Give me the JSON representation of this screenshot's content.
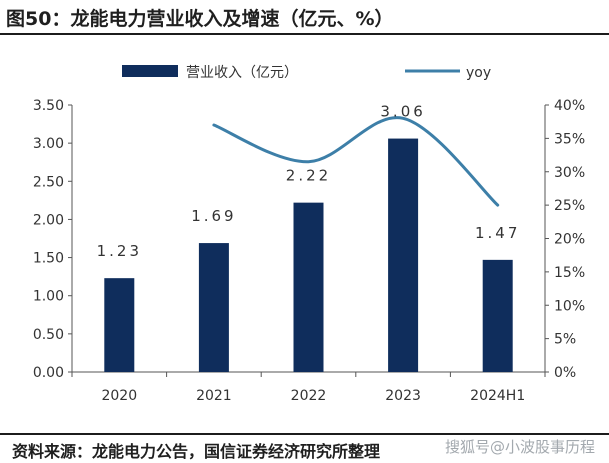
{
  "header": {
    "title": "图50：龙能电力营业收入及增速（亿元、%）"
  },
  "footer": {
    "source": "资料来源：龙能电力公告，国信证券经济研究所整理",
    "watermark": "搜狐号@小波股事历程"
  },
  "colors": {
    "bar": "#0f2d5c",
    "line": "#3d7fa8",
    "rule": "#1c1c1c",
    "text": "#333333"
  },
  "chart_data": {
    "type": "bar",
    "title": "龙能电力营业收入及增速（亿元、%）",
    "categories": [
      "2020",
      "2021",
      "2022",
      "2023",
      "2024H1"
    ],
    "series": [
      {
        "name": "营业收入（亿元）",
        "type": "bar",
        "axis": "left",
        "values": [
          1.23,
          1.69,
          2.22,
          3.06,
          1.47
        ],
        "labels": [
          "1.23",
          "1.69",
          "2.22",
          "3.06",
          "1.47"
        ]
      },
      {
        "name": "yoy",
        "type": "line",
        "axis": "right",
        "values": [
          null,
          37,
          31.5,
          38,
          25
        ]
      }
    ],
    "y_left": {
      "min": 0,
      "max": 3.5,
      "ticks": [
        "0.00",
        "0.50",
        "1.00",
        "1.50",
        "2.00",
        "2.50",
        "3.00",
        "3.50"
      ]
    },
    "y_right": {
      "min": 0,
      "max": 40,
      "ticks": [
        "0%",
        "5%",
        "10%",
        "15%",
        "20%",
        "25%",
        "30%",
        "35%",
        "40%"
      ]
    },
    "legend": {
      "placement": "top-center",
      "entries": [
        "营业收入（亿元）",
        "yoy"
      ]
    },
    "grid": false
  }
}
